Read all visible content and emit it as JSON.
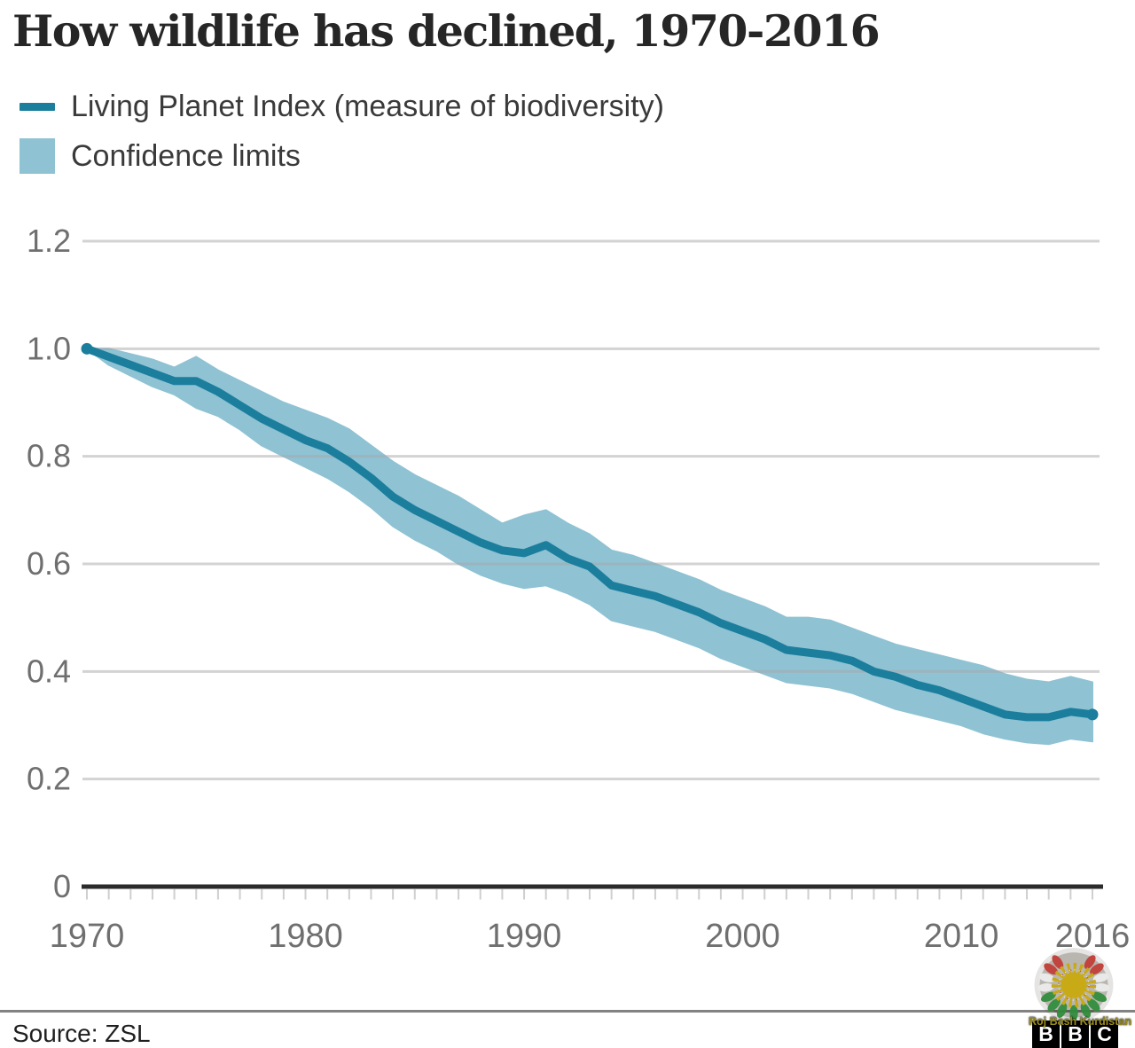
{
  "title": "How wildlife has declined, 1970-2016",
  "legend": {
    "items": [
      {
        "label": "Living Planet Index (measure of biodiversity)",
        "type": "line"
      },
      {
        "label": "Confidence limits",
        "type": "band"
      }
    ]
  },
  "footer": {
    "source": "Source: ZSL"
  },
  "watermark": {
    "emblem": "kurdistan-sun-wreath",
    "text": "Roj Bash Kurdistan"
  },
  "logo": {
    "name": "BBC",
    "letters": [
      "B",
      "B",
      "C"
    ]
  },
  "colors": {
    "line": "#1B7E9D",
    "band": "#8FC2D3",
    "grid": "#A8A8A8",
    "axis": "#2B2B2B",
    "tick": "#CFCFCF",
    "axis_text": "#6F6F6F",
    "title_text": "#262626",
    "legend_text": "#3A3A3A"
  },
  "chart_data": {
    "type": "line",
    "title": "How wildlife has declined, 1970-2016",
    "xlabel": "",
    "ylabel": "",
    "grid": true,
    "legend_position": "top-left",
    "ylim": [
      0,
      1.26
    ],
    "yticks": [
      0,
      0.2,
      0.4,
      0.6,
      0.8,
      1.0,
      1.2
    ],
    "xticks": [
      1970,
      1980,
      1990,
      2000,
      2010,
      2016
    ],
    "x": [
      1970,
      1971,
      1972,
      1973,
      1974,
      1975,
      1976,
      1977,
      1978,
      1979,
      1980,
      1981,
      1982,
      1983,
      1984,
      1985,
      1986,
      1987,
      1988,
      1989,
      1990,
      1991,
      1992,
      1993,
      1994,
      1995,
      1996,
      1997,
      1998,
      1999,
      2000,
      2001,
      2002,
      2003,
      2004,
      2005,
      2006,
      2007,
      2008,
      2009,
      2010,
      2011,
      2012,
      2013,
      2014,
      2015,
      2016
    ],
    "series": [
      {
        "name": "Living Planet Index (measure of biodiversity)",
        "values": [
          1.0,
          0.985,
          0.97,
          0.955,
          0.94,
          0.94,
          0.92,
          0.895,
          0.87,
          0.85,
          0.83,
          0.815,
          0.79,
          0.76,
          0.725,
          0.7,
          0.68,
          0.66,
          0.64,
          0.625,
          0.62,
          0.635,
          0.61,
          0.595,
          0.56,
          0.55,
          0.54,
          0.525,
          0.51,
          0.49,
          0.475,
          0.46,
          0.44,
          0.435,
          0.43,
          0.42,
          0.4,
          0.39,
          0.375,
          0.365,
          0.35,
          0.335,
          0.32,
          0.315,
          0.315,
          0.325,
          0.32
        ]
      },
      {
        "name": "Confidence limit (upper)",
        "values": [
          1.0,
          1.0,
          0.99,
          0.98,
          0.965,
          0.985,
          0.96,
          0.94,
          0.92,
          0.9,
          0.885,
          0.87,
          0.85,
          0.82,
          0.79,
          0.765,
          0.745,
          0.725,
          0.7,
          0.675,
          0.69,
          0.7,
          0.675,
          0.655,
          0.625,
          0.615,
          0.6,
          0.585,
          0.57,
          0.55,
          0.535,
          0.52,
          0.5,
          0.5,
          0.495,
          0.48,
          0.465,
          0.45,
          0.44,
          0.43,
          0.42,
          0.41,
          0.395,
          0.385,
          0.38,
          0.39,
          0.38
        ]
      },
      {
        "name": "Confidence limit (lower)",
        "values": [
          1.0,
          0.97,
          0.95,
          0.93,
          0.915,
          0.89,
          0.875,
          0.85,
          0.82,
          0.8,
          0.78,
          0.76,
          0.735,
          0.705,
          0.67,
          0.645,
          0.625,
          0.6,
          0.58,
          0.565,
          0.555,
          0.56,
          0.545,
          0.525,
          0.495,
          0.485,
          0.475,
          0.46,
          0.445,
          0.425,
          0.41,
          0.395,
          0.38,
          0.375,
          0.37,
          0.36,
          0.345,
          0.33,
          0.32,
          0.31,
          0.3,
          0.285,
          0.275,
          0.268,
          0.265,
          0.275,
          0.27
        ]
      }
    ]
  }
}
